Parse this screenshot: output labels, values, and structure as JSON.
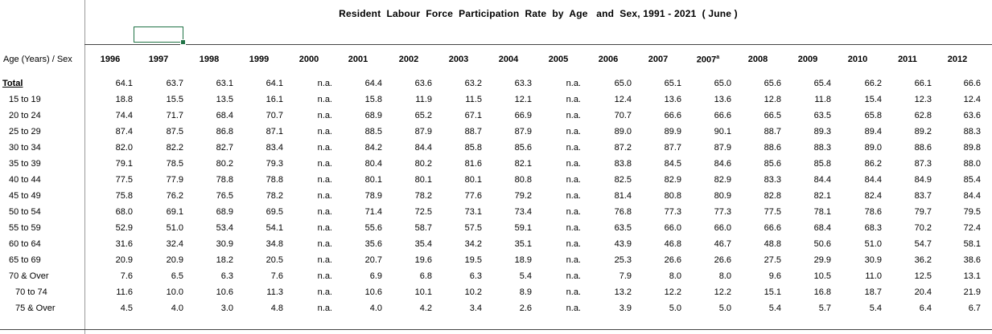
{
  "title": "Resident  Labour  Force  Participation  Rate  by  Age   and  Sex, 1991 - 2021  ( June )",
  "row_header": "Age (Years) / Sex",
  "years": [
    "1996",
    "1997",
    "1998",
    "1999",
    "2000",
    "2001",
    "2002",
    "2003",
    "2004",
    "2005",
    "2006",
    "2007",
    "2007",
    "2008",
    "2009",
    "2010",
    "2011",
    "2012"
  ],
  "year_superscripts": [
    "",
    "",
    "",
    "",
    "",
    "",
    "",
    "",
    "",
    "",
    "",
    "",
    "a",
    "",
    "",
    "",
    "",
    ""
  ],
  "rows": [
    {
      "label": "Total",
      "values": [
        "64.1",
        "63.7",
        "63.1",
        "64.1",
        "n.a.",
        "64.4",
        "63.6",
        "63.2",
        "63.3",
        "n.a.",
        "65.0",
        "65.1",
        "65.0",
        "65.6",
        "65.4",
        "66.2",
        "66.1",
        "66.6"
      ]
    },
    {
      "label": "15 to 19",
      "values": [
        "18.8",
        "15.5",
        "13.5",
        "16.1",
        "n.a.",
        "15.8",
        "11.9",
        "11.5",
        "12.1",
        "n.a.",
        "12.4",
        "13.6",
        "13.6",
        "12.8",
        "11.8",
        "15.4",
        "12.3",
        "12.4"
      ]
    },
    {
      "label": "20 to 24",
      "values": [
        "74.4",
        "71.7",
        "68.4",
        "70.7",
        "n.a.",
        "68.9",
        "65.2",
        "67.1",
        "66.9",
        "n.a.",
        "70.7",
        "66.6",
        "66.6",
        "66.5",
        "63.5",
        "65.8",
        "62.8",
        "63.6"
      ]
    },
    {
      "label": "25 to 29",
      "values": [
        "87.4",
        "87.5",
        "86.8",
        "87.1",
        "n.a.",
        "88.5",
        "87.9",
        "88.7",
        "87.9",
        "n.a.",
        "89.0",
        "89.9",
        "90.1",
        "88.7",
        "89.3",
        "89.4",
        "89.2",
        "88.3"
      ]
    },
    {
      "label": "30 to 34",
      "values": [
        "82.0",
        "82.2",
        "82.7",
        "83.4",
        "n.a.",
        "84.2",
        "84.4",
        "85.8",
        "85.6",
        "n.a.",
        "87.2",
        "87.7",
        "87.9",
        "88.6",
        "88.3",
        "89.0",
        "88.6",
        "89.8"
      ]
    },
    {
      "label": "35 to 39",
      "values": [
        "79.1",
        "78.5",
        "80.2",
        "79.3",
        "n.a.",
        "80.4",
        "80.2",
        "81.6",
        "82.1",
        "n.a.",
        "83.8",
        "84.5",
        "84.6",
        "85.6",
        "85.8",
        "86.2",
        "87.3",
        "88.0"
      ]
    },
    {
      "label": "40 to 44",
      "values": [
        "77.5",
        "77.9",
        "78.8",
        "78.8",
        "n.a.",
        "80.1",
        "80.1",
        "80.1",
        "80.8",
        "n.a.",
        "82.5",
        "82.9",
        "82.9",
        "83.3",
        "84.4",
        "84.4",
        "84.9",
        "85.4"
      ]
    },
    {
      "label": "45 to 49",
      "values": [
        "75.8",
        "76.2",
        "76.5",
        "78.2",
        "n.a.",
        "78.9",
        "78.2",
        "77.6",
        "79.2",
        "n.a.",
        "81.4",
        "80.8",
        "80.9",
        "82.8",
        "82.1",
        "82.4",
        "83.7",
        "84.4"
      ]
    },
    {
      "label": "50 to 54",
      "values": [
        "68.0",
        "69.1",
        "68.9",
        "69.5",
        "n.a.",
        "71.4",
        "72.5",
        "73.1",
        "73.4",
        "n.a.",
        "76.8",
        "77.3",
        "77.3",
        "77.5",
        "78.1",
        "78.6",
        "79.7",
        "79.5"
      ]
    },
    {
      "label": "55 to 59",
      "values": [
        "52.9",
        "51.0",
        "53.4",
        "54.1",
        "n.a.",
        "55.6",
        "58.7",
        "57.5",
        "59.1",
        "n.a.",
        "63.5",
        "66.0",
        "66.0",
        "66.6",
        "68.4",
        "68.3",
        "70.2",
        "72.4"
      ]
    },
    {
      "label": "60 to 64",
      "values": [
        "31.6",
        "32.4",
        "30.9",
        "34.8",
        "n.a.",
        "35.6",
        "35.4",
        "34.2",
        "35.1",
        "n.a.",
        "43.9",
        "46.8",
        "46.7",
        "48.8",
        "50.6",
        "51.0",
        "54.7",
        "58.1"
      ]
    },
    {
      "label": "65 to 69",
      "values": [
        "20.9",
        "20.9",
        "18.2",
        "20.5",
        "n.a.",
        "20.7",
        "19.6",
        "19.5",
        "18.9",
        "n.a.",
        "25.3",
        "26.6",
        "26.6",
        "27.5",
        "29.9",
        "30.9",
        "36.2",
        "38.6"
      ]
    },
    {
      "label": "70 & Over",
      "values": [
        "7.6",
        "6.5",
        "6.3",
        "7.6",
        "n.a.",
        "6.9",
        "6.8",
        "6.3",
        "5.4",
        "n.a.",
        "7.9",
        "8.0",
        "8.0",
        "9.6",
        "10.5",
        "11.0",
        "12.5",
        "13.1"
      ]
    },
    {
      "label": "70 to 74",
      "values": [
        "11.6",
        "10.0",
        "10.6",
        "11.3",
        "n.a.",
        "10.6",
        "10.1",
        "10.2",
        "8.9",
        "n.a.",
        "13.2",
        "12.2",
        "12.2",
        "15.1",
        "16.8",
        "18.7",
        "20.4",
        "21.9"
      ]
    },
    {
      "label": "75 & Over",
      "values": [
        "4.5",
        "4.0",
        "3.0",
        "4.8",
        "n.a.",
        "4.0",
        "4.2",
        "3.4",
        "2.6",
        "n.a.",
        "3.9",
        "5.0",
        "5.0",
        "5.4",
        "5.7",
        "5.4",
        "6.4",
        "6.7"
      ]
    }
  ]
}
